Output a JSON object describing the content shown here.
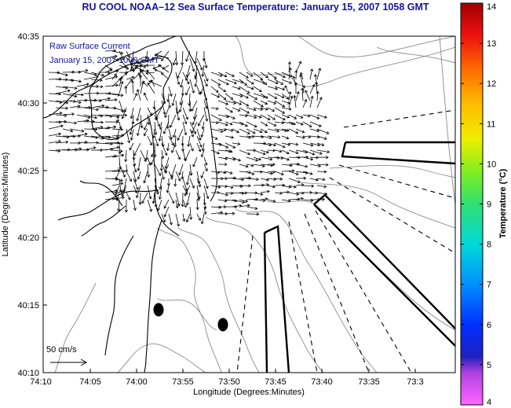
{
  "title": "RU COOL  NOAA–12  Sea Surface Temperature:  January 15, 2007 1058 GMT",
  "legend": {
    "line1": "Raw Surface Current",
    "line2": "January 15, 2007 1000 GMT"
  },
  "scale_arrow_label": "50 cm/s",
  "axes": {
    "xlabel": "Longitude (Degrees:Minutes)",
    "ylabel": "Latitude (Degrees:Minutes)",
    "xticks": [
      "74:10",
      "74:05",
      "74:00",
      "73:55",
      "73:50",
      "73:45",
      "73:40",
      "73:35",
      "73:3"
    ],
    "yticks": [
      "40:35",
      "40:30",
      "40:25",
      "40:20",
      "40:15",
      "40:10"
    ]
  },
  "colorbar": {
    "label": "Temperature (°C)",
    "ticks": [
      "14",
      "13",
      "12",
      "11",
      "10",
      "9",
      "8",
      "7",
      "6",
      "5",
      "4"
    ],
    "min": 4,
    "max": 14
  },
  "colors": {
    "title": "#1414a0",
    "legend_text": "#1414a0",
    "coastline": "#000000",
    "bathymetry": "#8c8c8c"
  }
}
